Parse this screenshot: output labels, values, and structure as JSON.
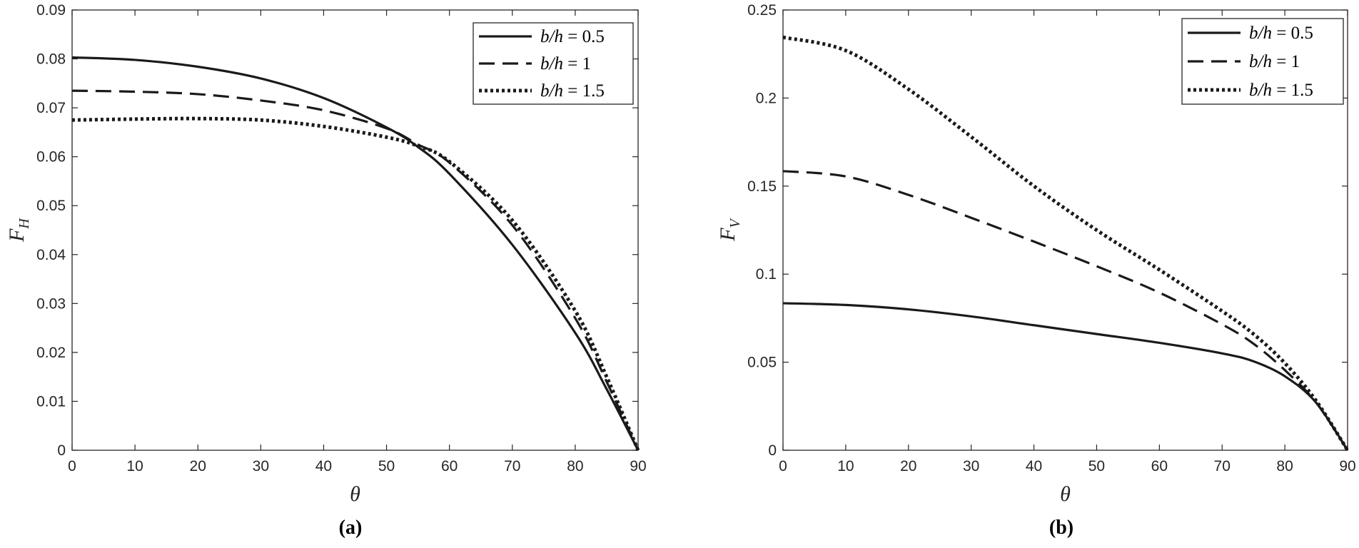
{
  "chart_data": [
    {
      "type": "line",
      "caption": "(a)",
      "xlabel": "θ",
      "ylabel": {
        "main": "F",
        "sub": "H"
      },
      "xlim": [
        0,
        90
      ],
      "ylim": [
        0,
        0.09
      ],
      "xticks": [
        0,
        10,
        20,
        30,
        40,
        50,
        60,
        70,
        80,
        90
      ],
      "yticks": [
        0,
        0.01,
        0.02,
        0.03,
        0.04,
        0.05,
        0.06,
        0.07,
        0.08,
        0.09
      ],
      "ytick_labels": [
        "0",
        "0.01",
        "0.02",
        "0.03",
        "0.04",
        "0.05",
        "0.06",
        "0.07",
        "0.08",
        "0.09"
      ],
      "grid": false,
      "legend": "top-right",
      "x": [
        0,
        10,
        20,
        30,
        40,
        50,
        55,
        60,
        70,
        80,
        85,
        90
      ],
      "series": [
        {
          "name": "b/h = 0.5",
          "style": "solid",
          "values": [
            0.0803,
            0.0798,
            0.0784,
            0.076,
            0.072,
            0.066,
            0.062,
            0.0565,
            0.042,
            0.024,
            0.0125,
            0.0
          ]
        },
        {
          "name": "b/h = 1",
          "style": "dashed",
          "values": [
            0.0735,
            0.0733,
            0.0728,
            0.0715,
            0.0695,
            0.0658,
            0.0625,
            0.0588,
            0.046,
            0.027,
            0.014,
            0.0
          ]
        },
        {
          "name": "b/h = 1.5",
          "style": "dotted",
          "values": [
            0.0675,
            0.0677,
            0.0678,
            0.0675,
            0.0662,
            0.064,
            0.0622,
            0.059,
            0.047,
            0.0285,
            0.015,
            0.0
          ]
        }
      ]
    },
    {
      "type": "line",
      "caption": "(b)",
      "xlabel": "θ",
      "ylabel": {
        "main": "F",
        "sub": "V"
      },
      "xlim": [
        0,
        90
      ],
      "ylim": [
        0,
        0.25
      ],
      "xticks": [
        0,
        10,
        20,
        30,
        40,
        50,
        60,
        70,
        80,
        90
      ],
      "yticks": [
        0,
        0.05,
        0.1,
        0.15,
        0.2,
        0.25
      ],
      "ytick_labels": [
        "0",
        "0.05",
        "0.1",
        "0.15",
        "0.2",
        "0.25"
      ],
      "grid": false,
      "legend": "top-right",
      "x": [
        0,
        10,
        20,
        30,
        40,
        50,
        60,
        70,
        75,
        80,
        85,
        90
      ],
      "series": [
        {
          "name": "b/h = 0.5",
          "style": "solid",
          "values": [
            0.0835,
            0.0825,
            0.08,
            0.076,
            0.071,
            0.066,
            0.061,
            0.055,
            0.0505,
            0.042,
            0.027,
            0.0
          ]
        },
        {
          "name": "b/h = 1",
          "style": "dashed",
          "values": [
            0.1585,
            0.1555,
            0.145,
            0.132,
            0.1185,
            0.1045,
            0.0895,
            0.0715,
            0.0605,
            0.0455,
            0.027,
            0.0
          ]
        },
        {
          "name": "b/h = 1.5",
          "style": "dotted",
          "values": [
            0.2345,
            0.227,
            0.205,
            0.178,
            0.15,
            0.125,
            0.1025,
            0.079,
            0.066,
            0.0495,
            0.028,
            0.0
          ]
        }
      ]
    }
  ]
}
